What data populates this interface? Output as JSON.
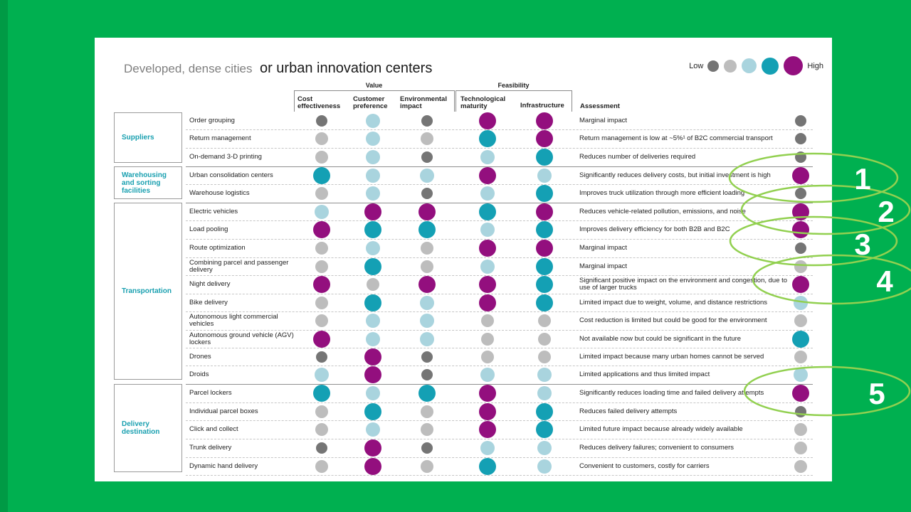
{
  "title": {
    "part1": "Developed, dense cities",
    "part2": "or urban innovation centers"
  },
  "legend": {
    "low": "Low",
    "high": "High",
    "levels": [
      "l1",
      "l2",
      "l3",
      "l4",
      "l5"
    ]
  },
  "colors": {
    "l1": "#757575",
    "l2": "#bdbdbd",
    "l3": "#a9d4de",
    "l4": "#14a0b4",
    "l5": "#930f7e",
    "background": "#00b050",
    "callout": "#92d050"
  },
  "group_headers": {
    "value": "Value",
    "feasibility": "Feasibility"
  },
  "columns": {
    "cost": "Cost effectiveness",
    "customer": "Customer preference",
    "environmental": "Environmental impact",
    "tech": "Technological maturity",
    "infra": "Infrastructure",
    "assessment": "Assessment"
  },
  "categories": [
    {
      "label": "Suppliers"
    },
    {
      "label": "Warehousing and sorting facilities"
    },
    {
      "label": "Transportation"
    },
    {
      "label": "Delivery destination"
    }
  ],
  "rows": [
    {
      "label": "Order grouping",
      "levels": [
        1,
        3,
        1,
        5,
        5
      ],
      "assessment": "Marginal impact",
      "overall": 1
    },
    {
      "label": "Return management",
      "levels": [
        2,
        3,
        2,
        4,
        5
      ],
      "assessment": "Return management is low at ~5%¹ of B2C commercial transport",
      "overall": 1
    },
    {
      "label": "On-demand 3-D printing",
      "levels": [
        2,
        3,
        1,
        3,
        4
      ],
      "assessment": "Reduces number of deliveries required",
      "overall": 1
    },
    {
      "label": "Urban consolidation centers",
      "levels": [
        4,
        3,
        3,
        5,
        3
      ],
      "assessment": "Significantly reduces delivery costs, but initial investment is high",
      "overall": 5
    },
    {
      "label": "Warehouse logistics",
      "levels": [
        2,
        3,
        1,
        3,
        4
      ],
      "assessment": "Improves truck utilization through more efficient loading",
      "overall": 1
    },
    {
      "label": "Electric vehicles",
      "levels": [
        3,
        5,
        5,
        4,
        5
      ],
      "assessment": "Reduces vehicle-related pollution, emissions, and noise",
      "overall": 5
    },
    {
      "label": "Load pooling",
      "levels": [
        5,
        4,
        4,
        3,
        4
      ],
      "assessment": "Improves delivery efficiency for both B2B and B2C",
      "overall": 5
    },
    {
      "label": "Route optimization",
      "levels": [
        2,
        3,
        2,
        5,
        5
      ],
      "assessment": "Marginal impact",
      "overall": 1
    },
    {
      "label": "Combining parcel and passenger delivery",
      "levels": [
        2,
        4,
        2,
        3,
        4
      ],
      "assessment": "Marginal impact",
      "overall": 2
    },
    {
      "label": "Night delivery",
      "levels": [
        5,
        2,
        5,
        5,
        4
      ],
      "assessment": "Significant positive impact on the environment and congestion, due to use of larger trucks",
      "overall": 5
    },
    {
      "label": "Bike delivery",
      "levels": [
        2,
        4,
        3,
        5,
        4
      ],
      "assessment": "Limited impact due to weight, volume, and distance restrictions",
      "overall": 3
    },
    {
      "label": "Autonomous light commercial vehicles",
      "levels": [
        2,
        3,
        3,
        2,
        2
      ],
      "assessment": "Cost reduction is limited but could be good for the environment",
      "overall": 2
    },
    {
      "label": "Autonomous ground vehicle (AGV) lockers",
      "levels": [
        5,
        3,
        3,
        2,
        2
      ],
      "assessment": "Not available now but could be significant in the future",
      "overall": 4
    },
    {
      "label": "Drones",
      "levels": [
        1,
        5,
        1,
        2,
        2
      ],
      "assessment": "Limited impact because many urban homes cannot be served",
      "overall": 2
    },
    {
      "label": "Droids",
      "levels": [
        3,
        5,
        1,
        3,
        3
      ],
      "assessment": "Limited applications and thus limited impact",
      "overall": 3
    },
    {
      "label": "Parcel lockers",
      "levels": [
        4,
        3,
        4,
        5,
        3
      ],
      "assessment": "Significantly reduces loading time and failed delivery attempts",
      "overall": 5
    },
    {
      "label": "Individual parcel boxes",
      "levels": [
        2,
        4,
        2,
        5,
        4
      ],
      "assessment": "Reduces failed delivery attempts",
      "overall": 1
    },
    {
      "label": "Click and collect",
      "levels": [
        2,
        3,
        2,
        5,
        4
      ],
      "assessment": "Limited future impact because already widely available",
      "overall": 2
    },
    {
      "label": "Trunk delivery",
      "levels": [
        1,
        5,
        1,
        3,
        3
      ],
      "assessment": "Reduces delivery failures; convenient to consumers",
      "overall": 2
    },
    {
      "label": "Dynamic hand delivery",
      "levels": [
        2,
        5,
        2,
        4,
        3
      ],
      "assessment": "Convenient to customers, costly for carriers",
      "overall": 2
    }
  ],
  "callouts": [
    "1",
    "2",
    "3",
    "4",
    "5"
  ]
}
